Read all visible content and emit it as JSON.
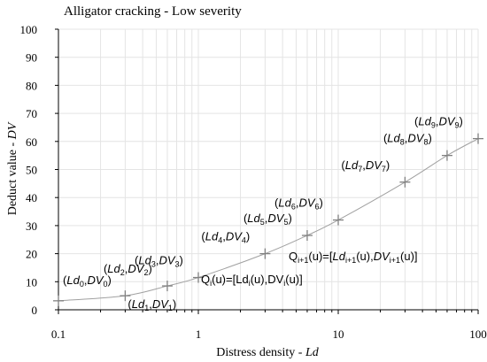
{
  "chart_data": {
    "type": "line",
    "title": "Alligator cracking - Low severity",
    "xlabel": "Distress density - ",
    "xlabel_var": "Ld",
    "ylabel": "Deduct value - ",
    "ylabel_var": "DV",
    "x_scale": "log",
    "xlim": [
      0.1,
      100
    ],
    "ylim": [
      0,
      100
    ],
    "x_ticks": [
      0.1,
      1,
      10,
      100
    ],
    "x_tick_labels": [
      "0.1",
      "1",
      "10",
      "100"
    ],
    "y_ticks": [
      0,
      10,
      20,
      30,
      40,
      50,
      60,
      70,
      80,
      90,
      100
    ],
    "y_tick_labels": [
      "0",
      "10",
      "20",
      "30",
      "40",
      "50",
      "60",
      "70",
      "80",
      "90",
      "100"
    ],
    "grid": true,
    "series": [
      {
        "color": "#808080",
        "marker": "plus",
        "points": [
          {
            "x": 0.1,
            "y": 3.2,
            "label": "(Ld0,DV0)"
          },
          {
            "x": 0.3,
            "y": 5,
            "label": "(Ld1,DV1)"
          },
          {
            "x": 0.6,
            "y": 8.5,
            "label": "(Ld2,DV2)"
          },
          {
            "x": 1,
            "y": 11.5,
            "label": "(Ld3,DV3)"
          },
          {
            "x": 3,
            "y": 20,
            "label": "(Ld4,DV4)"
          },
          {
            "x": 6,
            "y": 26.5,
            "label": "(Ld5,DV5)"
          },
          {
            "x": 10,
            "y": 32,
            "label": "(Ld6,DV6)"
          },
          {
            "x": 30,
            "y": 45.5,
            "label": "(Ld7,DV7)"
          },
          {
            "x": 60,
            "y": 55,
            "label": "(Ld8,DV8)"
          },
          {
            "x": 100,
            "y": 61,
            "label": "(Ld9,DV9)"
          }
        ]
      }
    ],
    "annotations": [
      {
        "text": "Qi+1(u)=[Ldi+1(u),DVi+1(u)]"
      },
      {
        "text": "Qi(u)=[Ldi(u),DVi(u)]"
      }
    ]
  }
}
